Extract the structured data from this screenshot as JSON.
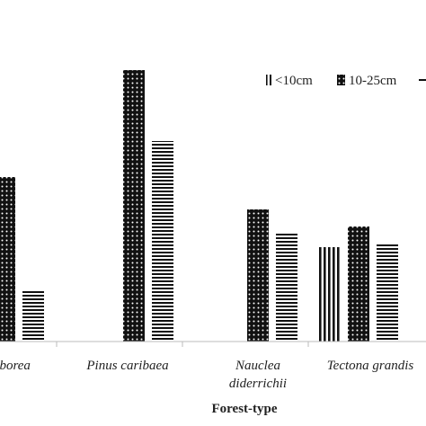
{
  "chart_data": {
    "type": "bar",
    "xlabel": "Forest-type",
    "ylabel": "",
    "title": "",
    "categories": [
      [
        "arborea"
      ],
      [
        "Pinus caribaea"
      ],
      [
        "Nauclea",
        "diderrichii"
      ],
      [
        "Tectona grandis"
      ]
    ],
    "series": [
      {
        "name": "<10cm",
        "pattern": "vertical-stripes",
        "values": [
          null,
          null,
          null,
          105
        ]
      },
      {
        "name": "10-25cm",
        "pattern": "dots",
        "values": [
          183,
          302,
          147,
          128
        ]
      },
      {
        "name": "",
        "pattern": "horizontal-stripes",
        "values": [
          58,
          223,
          122,
          109
        ]
      }
    ],
    "legend": {
      "position": "top-right"
    },
    "grid": false,
    "colors": {
      "bar": "#111111",
      "axis": "#bbbbbb",
      "text": "#222222"
    }
  }
}
